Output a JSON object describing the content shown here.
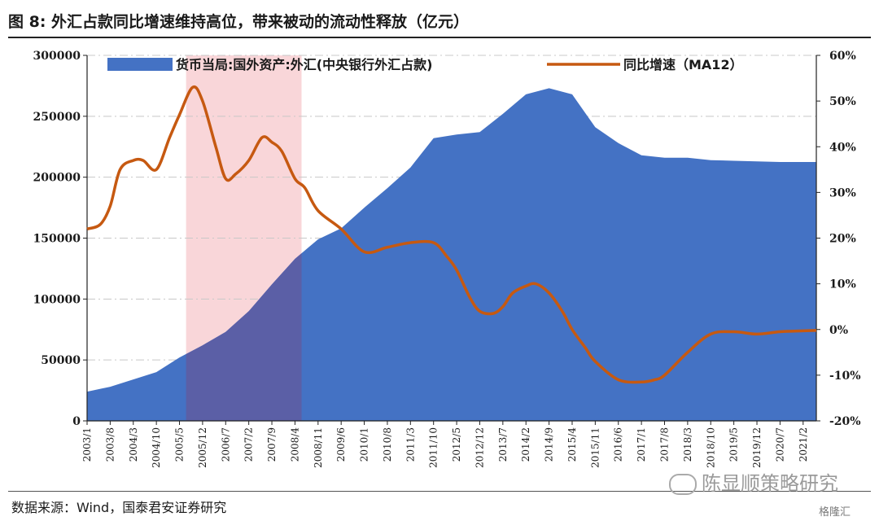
{
  "figure": {
    "title": "图 8:  外汇占款同比增速维持高位，带来被动的流动性释放（亿元）",
    "source": "数据来源：Wind，国泰君安证券研究",
    "watermark": "陈显顺策略研究",
    "corner_logo": "格隆汇"
  },
  "chart_data": {
    "type": "bar",
    "title": "",
    "legend": {
      "placement": "top",
      "entries": [
        "货币当局:国外资产:外汇(中央银行外汇占款)",
        "同比增速（MA12）"
      ]
    },
    "highlight_region": {
      "x_start": "2005/7",
      "x_end": "2008/6",
      "color": "#f9d6d9"
    },
    "left_axis": {
      "ylim": [
        0,
        300000
      ],
      "ticks": [
        "0",
        "50000",
        "100000",
        "150000",
        "200000",
        "250000",
        "300000"
      ]
    },
    "right_axis": {
      "ylim": [
        -20,
        60
      ],
      "ticks": [
        "-20%",
        "-10%",
        "0%",
        "10%",
        "20%",
        "30%",
        "40%",
        "50%",
        "60%"
      ]
    },
    "x_tick_labels": [
      "2003/1",
      "2003/8",
      "2004/3",
      "2004/10",
      "2005/5",
      "2005/12",
      "2006/7",
      "2007/2",
      "2007/9",
      "2008/4",
      "2008/11",
      "2009/6",
      "2010/1",
      "2010/8",
      "2011/3",
      "2011/10",
      "2012/5",
      "2012/12",
      "2013/7",
      "2014/2",
      "2014/9",
      "2015/4",
      "2015/11",
      "2016/6",
      "2017/1",
      "2017/8",
      "2018/3",
      "2018/10",
      "2019/5",
      "2019/12",
      "2020/7",
      "2021/2"
    ],
    "grid": true,
    "series": [
      {
        "name": "货币当局:国外资产:外汇(中央银行外汇占款)",
        "kind": "area-bar",
        "axis": "left",
        "color": "#4472c4",
        "points": [
          [
            "2003/1",
            24000
          ],
          [
            "2003/8",
            28000
          ],
          [
            "2004/3",
            34000
          ],
          [
            "2004/10",
            40000
          ],
          [
            "2005/5",
            52000
          ],
          [
            "2005/12",
            62000
          ],
          [
            "2006/7",
            73000
          ],
          [
            "2007/2",
            90000
          ],
          [
            "2007/9",
            112000
          ],
          [
            "2008/4",
            133000
          ],
          [
            "2008/11",
            149000
          ],
          [
            "2009/6",
            158000
          ],
          [
            "2010/1",
            175000
          ],
          [
            "2010/8",
            191000
          ],
          [
            "2011/3",
            208000
          ],
          [
            "2011/10",
            232000
          ],
          [
            "2012/5",
            235000
          ],
          [
            "2012/12",
            237000
          ],
          [
            "2013/7",
            252000
          ],
          [
            "2014/2",
            268000
          ],
          [
            "2014/9",
            273000
          ],
          [
            "2015/4",
            268000
          ],
          [
            "2015/11",
            241000
          ],
          [
            "2016/6",
            228000
          ],
          [
            "2017/1",
            218000
          ],
          [
            "2017/8",
            216000
          ],
          [
            "2018/3",
            216000
          ],
          [
            "2018/10",
            214000
          ],
          [
            "2019/5",
            213500
          ],
          [
            "2019/12",
            213000
          ],
          [
            "2020/7",
            212500
          ],
          [
            "2021/2",
            212500
          ],
          [
            "2021/6",
            212500
          ]
        ]
      },
      {
        "name": "同比增速（MA12）",
        "kind": "line",
        "axis": "right",
        "color": "#c65911",
        "points": [
          [
            "2003/1",
            22
          ],
          [
            "2003/5",
            23
          ],
          [
            "2003/8",
            27
          ],
          [
            "2003/11",
            35
          ],
          [
            "2004/3",
            37
          ],
          [
            "2004/6",
            37
          ],
          [
            "2004/10",
            35
          ],
          [
            "2005/2",
            42
          ],
          [
            "2005/5",
            47
          ],
          [
            "2005/9",
            53
          ],
          [
            "2005/12",
            50
          ],
          [
            "2006/4",
            40
          ],
          [
            "2006/7",
            33
          ],
          [
            "2006/10",
            34
          ],
          [
            "2007/2",
            37
          ],
          [
            "2007/6",
            42
          ],
          [
            "2007/9",
            41
          ],
          [
            "2007/12",
            39
          ],
          [
            "2008/4",
            33
          ],
          [
            "2008/7",
            31
          ],
          [
            "2008/11",
            26
          ],
          [
            "2009/6",
            22
          ],
          [
            "2010/1",
            17
          ],
          [
            "2010/8",
            18
          ],
          [
            "2011/3",
            19
          ],
          [
            "2011/10",
            19
          ],
          [
            "2012/2",
            16
          ],
          [
            "2012/5",
            13
          ],
          [
            "2012/9",
            7
          ],
          [
            "2012/12",
            4
          ],
          [
            "2013/4",
            3.5
          ],
          [
            "2013/7",
            5
          ],
          [
            "2013/10",
            8
          ],
          [
            "2014/2",
            9.5
          ],
          [
            "2014/5",
            10
          ],
          [
            "2014/9",
            8
          ],
          [
            "2015/1",
            4
          ],
          [
            "2015/4",
            0
          ],
          [
            "2015/8",
            -4
          ],
          [
            "2015/11",
            -7
          ],
          [
            "2016/6",
            -11
          ],
          [
            "2017/1",
            -11.5
          ],
          [
            "2017/5",
            -11
          ],
          [
            "2017/8",
            -10
          ],
          [
            "2018/3",
            -5
          ],
          [
            "2018/10",
            -1
          ],
          [
            "2019/5",
            -0.5
          ],
          [
            "2019/12",
            -1
          ],
          [
            "2020/7",
            -0.5
          ],
          [
            "2021/2",
            -0.3
          ],
          [
            "2021/6",
            -0.2
          ]
        ]
      }
    ]
  }
}
